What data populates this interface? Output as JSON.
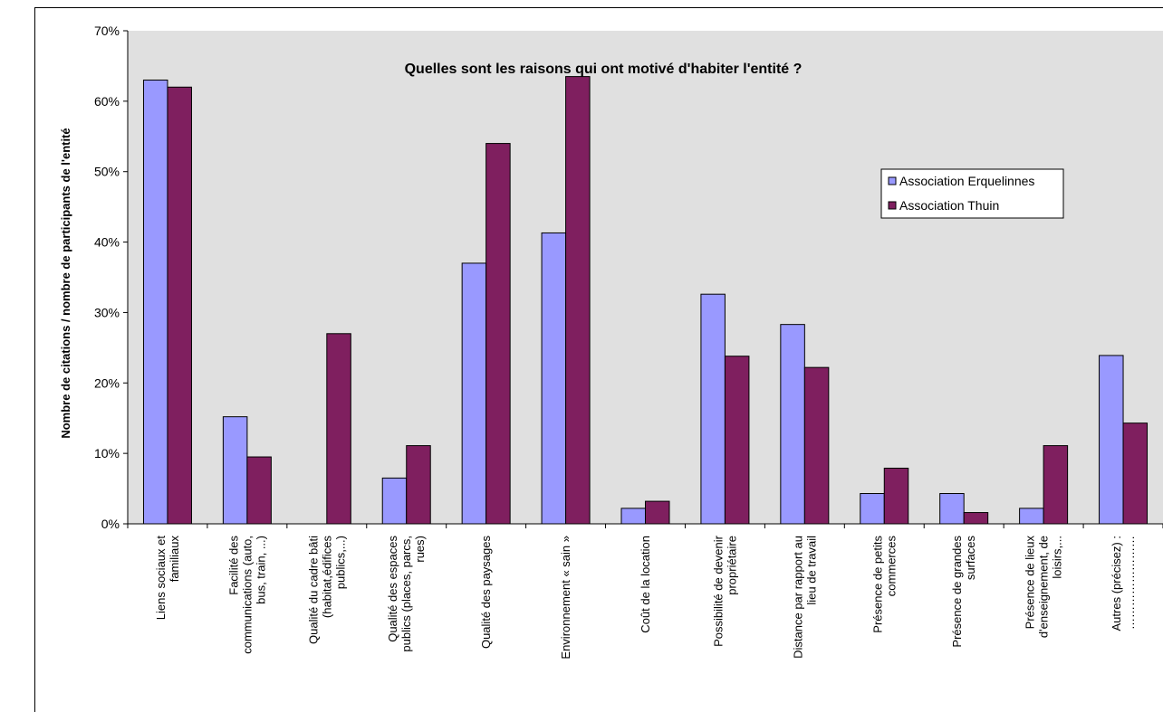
{
  "chart_data": {
    "type": "bar",
    "title": "Quelles sont les raisons qui ont motivé d'habiter l'entité ?",
    "ylabel": "Nombre de citations / nombre de participants de l'entité",
    "xlabel": "",
    "ylim": [
      0,
      70
    ],
    "yticks": [
      "0%",
      "10%",
      "20%",
      "30%",
      "40%",
      "50%",
      "60%",
      "70%"
    ],
    "categories": [
      [
        "Liens sociaux et",
        "familiaux"
      ],
      [
        "Facilité des",
        "communications (auto,",
        "bus, train, ...)"
      ],
      [
        "Qualité du cadre bâti",
        "(habitat,édifices",
        "publics,...)"
      ],
      [
        "Qualité des espaces",
        "publics (places, parcs,",
        "rues)"
      ],
      [
        "Qualité des paysages"
      ],
      [
        "Environnement « sain »"
      ],
      [
        "Coût de la location"
      ],
      [
        "Possibilité de devenir",
        "propriétaire"
      ],
      [
        "Distance par rapport au",
        "lieu de travail"
      ],
      [
        "Présence de petits",
        "commerces"
      ],
      [
        "Présence de grandes",
        "surfaces"
      ],
      [
        "Présence de lieux",
        "d'enseignement, de",
        "loisirs,..."
      ],
      [
        "Autres (précisez) :",
        "……………………"
      ]
    ],
    "series": [
      {
        "name": "Association Erquelinnes",
        "color": "#9999ff",
        "values": [
          63,
          15.2,
          0,
          6.5,
          37,
          41.3,
          2.2,
          32.6,
          28.3,
          4.3,
          4.3,
          2.2,
          23.9
        ]
      },
      {
        "name": "Association Thuin",
        "color": "#7f1f5f",
        "values": [
          62,
          9.5,
          27,
          11.1,
          54,
          63.5,
          3.2,
          23.8,
          22.2,
          7.9,
          1.6,
          11.1,
          14.3
        ]
      }
    ],
    "grid": false,
    "plot_background": "#e0e0e0",
    "legend_position": "right"
  }
}
